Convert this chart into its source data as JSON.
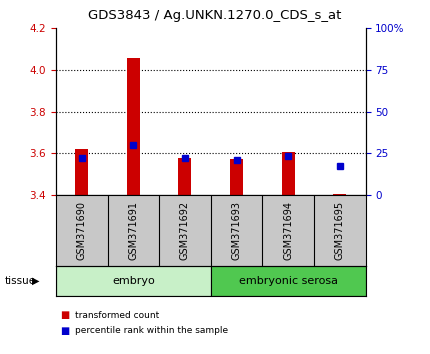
{
  "title": "GDS3843 / Ag.UNKN.1270.0_CDS_s_at",
  "samples": [
    "GSM371690",
    "GSM371691",
    "GSM371692",
    "GSM371693",
    "GSM371694",
    "GSM371695"
  ],
  "transformed_counts": [
    3.62,
    4.055,
    3.578,
    3.573,
    3.605,
    3.403
  ],
  "percentile_ranks": [
    22,
    30,
    22,
    21,
    23,
    17
  ],
  "bar_bottom": 3.4,
  "ylim_left": [
    3.4,
    4.2
  ],
  "ylim_right": [
    0,
    100
  ],
  "yticks_left": [
    3.4,
    3.6,
    3.8,
    4.0,
    4.2
  ],
  "yticks_right": [
    0,
    25,
    50,
    75,
    100
  ],
  "ytick_labels_right": [
    "0",
    "25",
    "50",
    "75",
    "100%"
  ],
  "bar_color": "#cc0000",
  "dot_color": "#0000cc",
  "tissue_groups": [
    {
      "label": "embryo",
      "samples": [
        0,
        1,
        2
      ],
      "color": "#c8f0c8"
    },
    {
      "label": "embryonic serosa",
      "samples": [
        3,
        4,
        5
      ],
      "color": "#50c850"
    }
  ],
  "tissue_label": "tissue",
  "legend_items": [
    {
      "label": "transformed count",
      "color": "#cc0000"
    },
    {
      "label": "percentile rank within the sample",
      "color": "#0000cc"
    }
  ],
  "background_color": "#ffffff",
  "sample_box_color": "#c8c8c8",
  "grid_color": "#000000"
}
